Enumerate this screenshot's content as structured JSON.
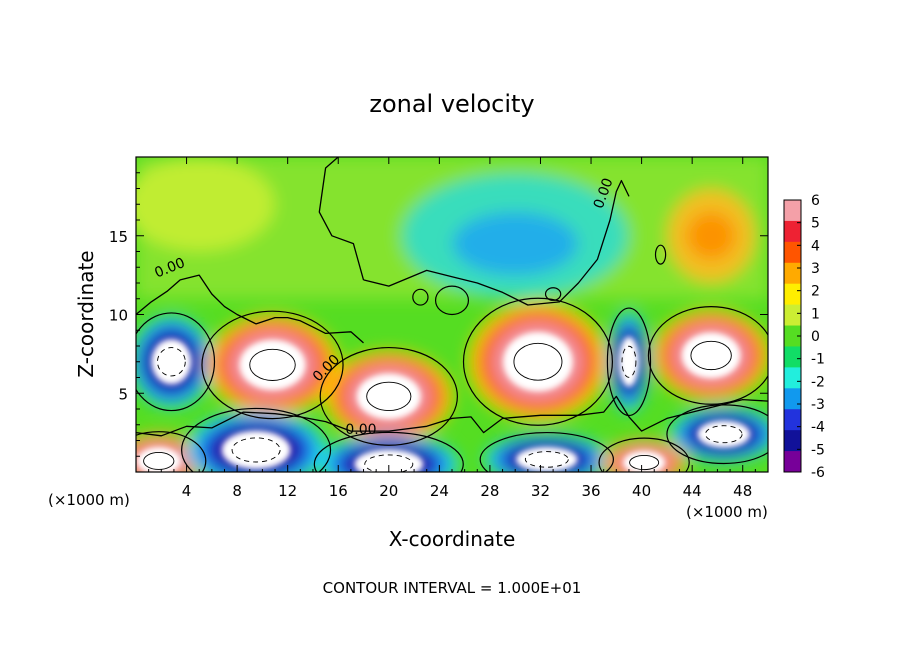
{
  "chart_data": {
    "type": "heatmap",
    "title": "zonal velocity",
    "xlabel": "X-coordinate",
    "ylabel": "Z-coordinate",
    "x_unit_label": "(×1000 m)",
    "x_unit_label_right": "(×1000 m)",
    "xlim": [
      0,
      50
    ],
    "ylim": [
      0,
      20
    ],
    "x_ticks": [
      4,
      8,
      12,
      16,
      20,
      24,
      28,
      32,
      36,
      40,
      44,
      48
    ],
    "x_tick_labels": [
      "4",
      "8",
      "12",
      "16",
      "20",
      "24",
      "28",
      "32",
      "36",
      "40",
      "44",
      "48"
    ],
    "y_ticks": [
      5,
      10,
      15
    ],
    "y_tick_labels": [
      "5",
      "10",
      "15"
    ],
    "colorbar": {
      "range": [
        -6,
        6
      ],
      "labels": [
        "6",
        "5",
        "4",
        "3",
        "2",
        "1",
        "0",
        "-1",
        "-2",
        "-3",
        "-4",
        "-5",
        "-6"
      ],
      "colors": [
        "#f4a0a8",
        "#ee2233",
        "#ff5500",
        "#ffaa00",
        "#ffee00",
        "#ccee33",
        "#55dd22",
        "#11dd66",
        "#22eedd",
        "#1199ee",
        "#2233dd",
        "#111199",
        "#770099"
      ]
    },
    "contour_labels": [
      "0.00",
      "0.00",
      "0.00",
      "0.00"
    ],
    "footer": "CONTOUR INTERVAL = 1.000E+01",
    "grid": false,
    "features": [
      {
        "kind": "jet",
        "x": 2.8,
        "z": 7.0,
        "rx": 2.2,
        "rz": 2.0,
        "sign": "negative"
      },
      {
        "kind": "jet",
        "x": 10.8,
        "z": 6.8,
        "rx": 3.6,
        "rz": 2.2,
        "sign": "positive"
      },
      {
        "kind": "jet",
        "x": 20.0,
        "z": 4.8,
        "rx": 3.5,
        "rz": 2.0,
        "sign": "positive"
      },
      {
        "kind": "jet",
        "x": 31.8,
        "z": 7.0,
        "rx": 3.8,
        "rz": 2.6,
        "sign": "positive"
      },
      {
        "kind": "jet",
        "x": 39.0,
        "z": 7.0,
        "rx": 1.1,
        "rz": 2.2,
        "sign": "negative"
      },
      {
        "kind": "jet",
        "x": 45.5,
        "z": 7.4,
        "rx": 3.2,
        "rz": 2.0,
        "sign": "positive"
      },
      {
        "kind": "jet",
        "x": 1.8,
        "z": 0.7,
        "rx": 2.4,
        "rz": 1.2,
        "sign": "positive"
      },
      {
        "kind": "jet",
        "x": 9.5,
        "z": 1.4,
        "rx": 3.8,
        "rz": 1.7,
        "sign": "negative"
      },
      {
        "kind": "jet",
        "x": 20.0,
        "z": 0.5,
        "rx": 3.8,
        "rz": 1.3,
        "sign": "negative"
      },
      {
        "kind": "jet",
        "x": 32.5,
        "z": 0.8,
        "rx": 3.4,
        "rz": 1.1,
        "sign": "negative"
      },
      {
        "kind": "jet",
        "x": 40.2,
        "z": 0.6,
        "rx": 2.3,
        "rz": 1.0,
        "sign": "positive"
      },
      {
        "kind": "jet",
        "x": 46.5,
        "z": 2.4,
        "rx": 2.9,
        "rz": 1.2,
        "sign": "negative"
      },
      {
        "kind": "blob",
        "x": 30.0,
        "z": 15.0,
        "rx": 9.0,
        "rz": 4.0,
        "value": -2.4
      },
      {
        "kind": "blob",
        "x": 45.5,
        "z": 15.0,
        "rx": 3.5,
        "rz": 3.0,
        "value": 3.2
      },
      {
        "kind": "blob",
        "x": 5.0,
        "z": 17.0,
        "rx": 6.0,
        "rz": 3.0,
        "value": 1.3
      }
    ]
  }
}
